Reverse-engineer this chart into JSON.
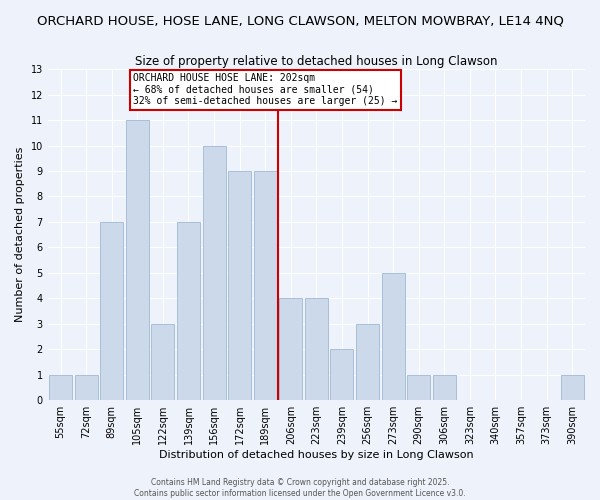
{
  "title1": "ORCHARD HOUSE, HOSE LANE, LONG CLAWSON, MELTON MOWBRAY, LE14 4NQ",
  "title2": "Size of property relative to detached houses in Long Clawson",
  "xlabel": "Distribution of detached houses by size in Long Clawson",
  "ylabel": "Number of detached properties",
  "categories": [
    "55sqm",
    "72sqm",
    "89sqm",
    "105sqm",
    "122sqm",
    "139sqm",
    "156sqm",
    "172sqm",
    "189sqm",
    "206sqm",
    "223sqm",
    "239sqm",
    "256sqm",
    "273sqm",
    "290sqm",
    "306sqm",
    "323sqm",
    "340sqm",
    "357sqm",
    "373sqm",
    "390sqm"
  ],
  "values": [
    1,
    1,
    7,
    11,
    3,
    7,
    10,
    9,
    9,
    4,
    4,
    2,
    3,
    5,
    1,
    1,
    0,
    0,
    0,
    0,
    1
  ],
  "bar_color": "#ccd9ea",
  "bar_edge_color": "#a8bfd8",
  "vline_x": 8.5,
  "annotation_line1": "ORCHARD HOUSE HOSE LANE: 202sqm",
  "annotation_line2": "← 68% of detached houses are smaller (54)",
  "annotation_line3": "32% of semi-detached houses are larger (25) →",
  "annotation_box_color": "#ffffff",
  "annotation_box_edge": "#cc0000",
  "vline_color": "#cc0000",
  "ylim": [
    0,
    13
  ],
  "yticks": [
    0,
    1,
    2,
    3,
    4,
    5,
    6,
    7,
    8,
    9,
    10,
    11,
    12,
    13
  ],
  "footer1": "Contains HM Land Registry data © Crown copyright and database right 2025.",
  "footer2": "Contains public sector information licensed under the Open Government Licence v3.0.",
  "background_color": "#eef2fa",
  "grid_color": "#ffffff",
  "title1_fontsize": 9.5,
  "title2_fontsize": 8.5,
  "tick_fontsize": 7,
  "ylabel_fontsize": 8,
  "xlabel_fontsize": 8,
  "annotation_fontsize": 7,
  "footer_fontsize": 5.5
}
